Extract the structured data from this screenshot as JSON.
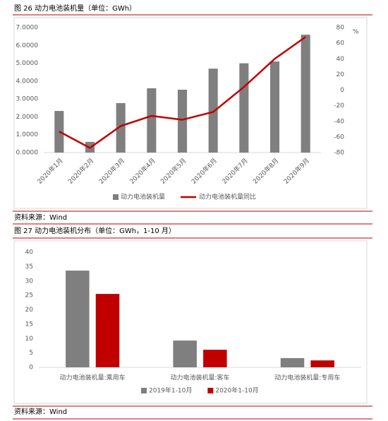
{
  "chart_data": [
    {
      "type": "bar",
      "title": "图 26 动力电池装机量（单位：GWh）",
      "source": "资料来源：Wind",
      "categories": [
        "2020年1月",
        "2020年2月",
        "2020年3月",
        "2020年4月",
        "2020年5月",
        "2020年6月",
        "2020年7月",
        "2020年8月",
        "2020年9月"
      ],
      "series": [
        {
          "name": "动力电池装机量",
          "color": "#7f7f7f",
          "values": [
            2.33,
            0.6,
            2.77,
            3.6,
            3.52,
            4.7,
            5.0,
            5.1,
            6.6
          ]
        },
        {
          "name": "动力电池装机量同比",
          "color": "#c00000",
          "type": "line",
          "axis": "y2",
          "values": [
            -53,
            -74,
            -46,
            -33,
            -38,
            -28,
            4,
            40,
            68
          ]
        }
      ],
      "ylim": [
        0,
        7
      ],
      "yticks": [
        {
          "value": 0,
          "label": "0.0000"
        },
        {
          "value": 1,
          "label": "1.0000"
        },
        {
          "value": 2,
          "label": "2.0000"
        },
        {
          "value": 3,
          "label": "3.0000"
        },
        {
          "value": 4,
          "label": "4.0000"
        },
        {
          "value": 5,
          "label": "5.0000"
        },
        {
          "value": 6,
          "label": "6.0000"
        },
        {
          "value": 7,
          "label": "7.0000"
        }
      ],
      "y2lim": [
        -80,
        80
      ],
      "y2ticks": [
        -80,
        -60,
        -40,
        -20,
        0,
        20,
        40,
        60,
        80
      ],
      "y2_label": "%"
    },
    {
      "type": "bar",
      "title": "图 27 动力电池装机分布（单位：GWh，1-10 月）",
      "source": "资料来源：Wind",
      "categories": [
        "动力电池装机量:乘用车",
        "动力电池装机量:客车",
        "动力电池装机量:专用车"
      ],
      "series": [
        {
          "name": "2019年1-10月",
          "color": "#7f7f7f",
          "values": [
            33.6,
            9.3,
            3.2
          ]
        },
        {
          "name": "2020年1-10月",
          "color": "#c00000",
          "values": [
            25.5,
            6.1,
            2.4
          ]
        }
      ],
      "ylim": [
        0,
        40
      ],
      "yticks": [
        0,
        5,
        10,
        15,
        20,
        25,
        30,
        35,
        40
      ]
    }
  ]
}
